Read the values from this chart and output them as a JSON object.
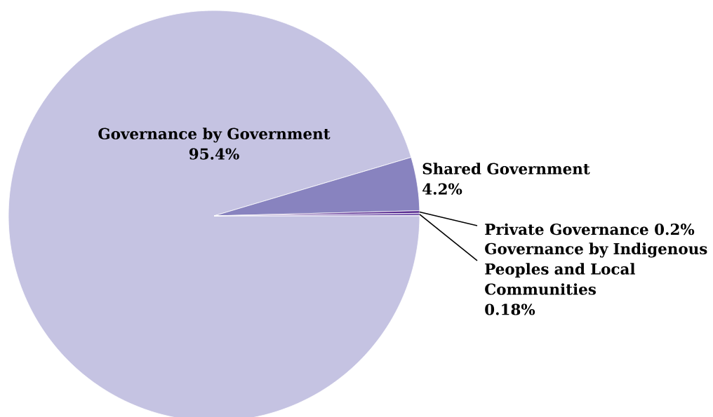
{
  "chart_data": {
    "type": "pie",
    "categories": [
      "Governance by Government",
      "Shared Government",
      "Private Governance",
      "Governance by Indigenous Peoples and Local Communities"
    ],
    "values": [
      95.4,
      4.2,
      0.2,
      0.18
    ],
    "value_labels": [
      "95.4%",
      "4.2%",
      "0.2%",
      "0.18%"
    ],
    "colors": [
      "#c5c3e2",
      "#8883bf",
      "#5a2d91",
      "#7a5cb0"
    ]
  }
}
